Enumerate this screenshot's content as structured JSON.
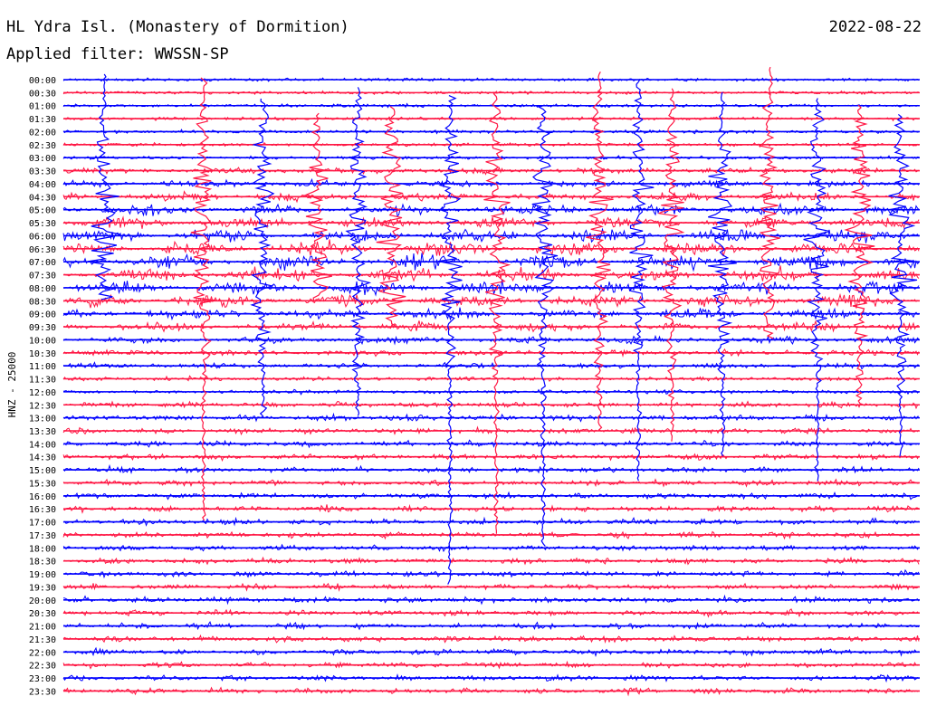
{
  "header": {
    "station": "HL Ydra Isl. (Monastery of Dormition)",
    "filter": "Applied filter: WWSSN-SP",
    "date": "2022-08-22"
  },
  "chart_data": {
    "type": "line",
    "title": "HL Ydra Isl. (Monastery of Dormition)",
    "ylabel": "HNZ - 25000",
    "filter": "WWSSN-SP",
    "date": "2022-08-22",
    "trace_interval_minutes": 30,
    "row_labels": [
      "00:00",
      "00:30",
      "01:00",
      "01:30",
      "02:00",
      "02:30",
      "03:00",
      "03:30",
      "04:00",
      "04:30",
      "05:00",
      "05:30",
      "06:00",
      "06:30",
      "07:00",
      "07:30",
      "08:00",
      "08:30",
      "09:00",
      "09:30",
      "10:00",
      "10:30",
      "11:00",
      "11:30",
      "12:00",
      "12:30",
      "13:00",
      "13:30",
      "14:00",
      "14:30",
      "15:00",
      "15:30",
      "16:00",
      "16:30",
      "17:00",
      "17:30",
      "18:00",
      "18:30",
      "19:00",
      "19:30",
      "20:00",
      "20:30",
      "21:00",
      "21:30",
      "22:00",
      "22:30",
      "23:00",
      "23:30"
    ],
    "series_colors": [
      "#0000ff",
      "#ff1744"
    ],
    "grid": false,
    "legend": "none"
  }
}
